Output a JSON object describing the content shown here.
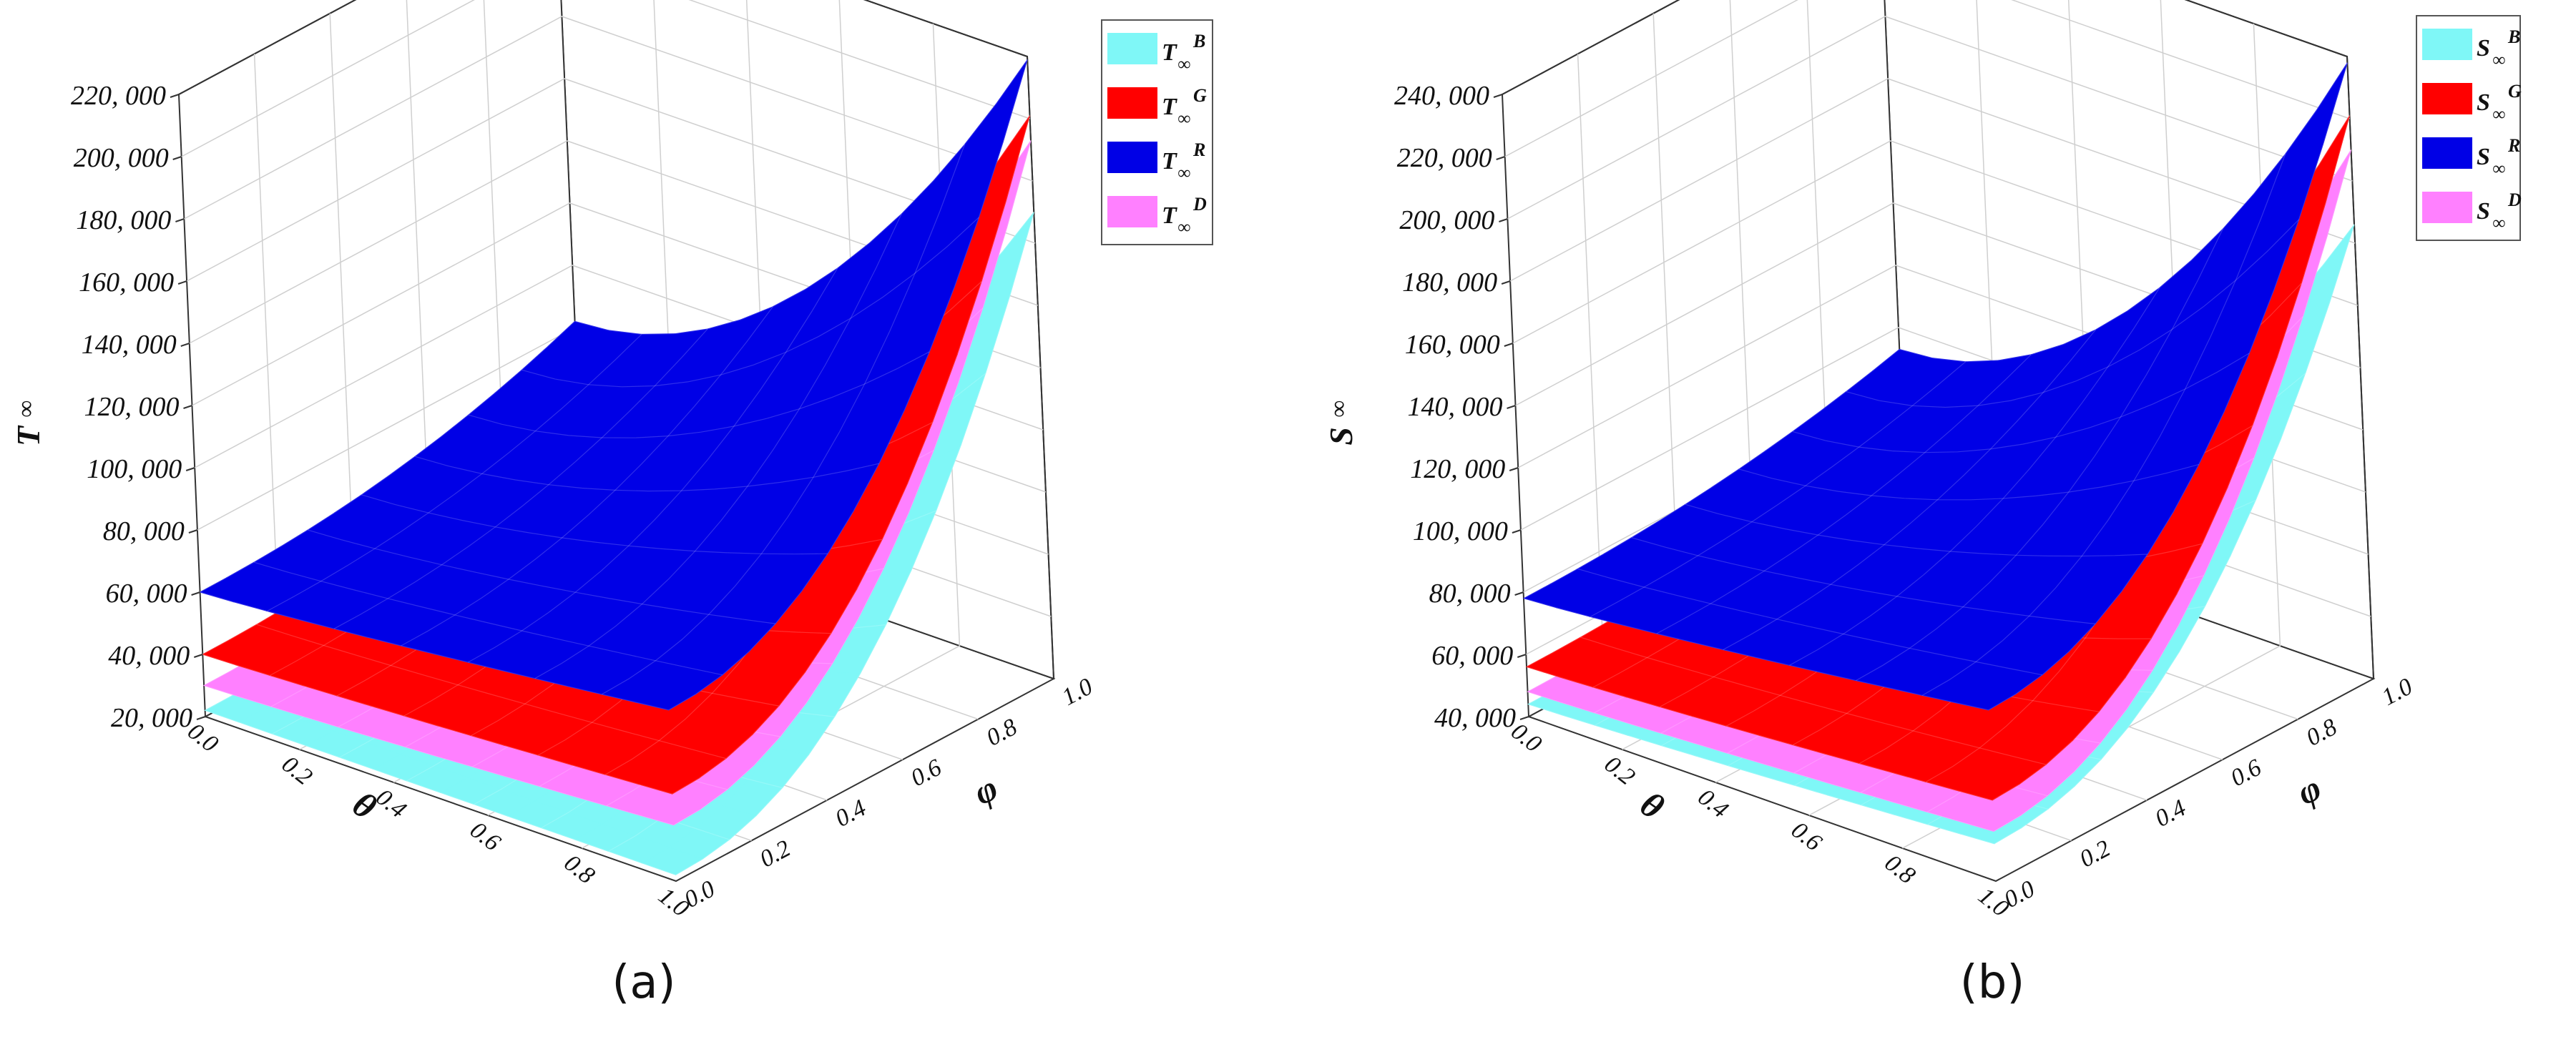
{
  "chart_data": [
    {
      "type": "surface3d",
      "panel_label": "(a)",
      "zlabel": "T",
      "zlabel_sub": "∞",
      "xlabel": "θ",
      "ylabel": "φ",
      "x_ticks": [
        "0.0",
        "0.2",
        "0.4",
        "0.6",
        "0.8",
        "1.0"
      ],
      "y_ticks": [
        "0.0",
        "0.2",
        "0.4",
        "0.6",
        "0.8",
        "1.0"
      ],
      "z_ticks": [
        "20, 000",
        "40, 000",
        "60, 000",
        "80, 000",
        "100, 000",
        "120, 000",
        "140, 000",
        "160, 000",
        "180, 000",
        "200, 000",
        "220, 000"
      ],
      "zlim": [
        20000,
        220000
      ],
      "legend_placement": "top-right",
      "series": [
        {
          "name": "T",
          "sub": "∞",
          "sup": "B",
          "color": "#7ff7f7",
          "corners": {
            "t0p0": 22000,
            "t1p0": 22000,
            "t0p1": 44000,
            "t1p1": 170000
          }
        },
        {
          "name": "T",
          "sub": "∞",
          "sup": "G",
          "color": "#ff0000",
          "corners": {
            "t0p0": 40000,
            "t1p0": 48000,
            "t0p1": 63000,
            "t1p1": 201000
          }
        },
        {
          "name": "T",
          "sub": "∞",
          "sup": "R",
          "color": "#0000e6",
          "corners": {
            "t0p0": 60000,
            "t1p0": 75000,
            "t0p1": 82000,
            "t1p1": 219000
          }
        },
        {
          "name": "T",
          "sub": "∞",
          "sup": "D",
          "color": "#ff80ff",
          "corners": {
            "t0p0": 30000,
            "t1p0": 38000,
            "t0p1": 52000,
            "t1p1": 193000
          }
        }
      ]
    },
    {
      "type": "surface3d",
      "panel_label": "(b)",
      "zlabel": "S",
      "zlabel_sub": "∞",
      "xlabel": "θ",
      "ylabel": "φ",
      "x_ticks": [
        "0.0",
        "0.2",
        "0.4",
        "0.6",
        "0.8",
        "1.0"
      ],
      "y_ticks": [
        "0.0",
        "0.2",
        "0.4",
        "0.6",
        "0.8",
        "1.0"
      ],
      "z_ticks": [
        "40, 000",
        "60, 000",
        "80, 000",
        "100, 000",
        "120, 000",
        "140, 000",
        "160, 000",
        "180, 000",
        "200, 000",
        "220, 000",
        "240, 000"
      ],
      "zlim": [
        40000,
        240000
      ],
      "legend_placement": "top-right",
      "series": [
        {
          "name": "S",
          "sub": "∞",
          "sup": "B",
          "color": "#7ff7f7",
          "corners": {
            "t0p0": 44000,
            "t1p0": 52000,
            "t0p1": 58000,
            "t1p1": 186000
          }
        },
        {
          "name": "S",
          "sub": "∞",
          "sup": "G",
          "color": "#ff0000",
          "corners": {
            "t0p0": 56000,
            "t1p0": 66000,
            "t0p1": 71000,
            "t1p1": 221000
          }
        },
        {
          "name": "S",
          "sub": "∞",
          "sup": "R",
          "color": "#0000e6",
          "corners": {
            "t0p0": 78000,
            "t1p0": 95000,
            "t0p1": 93000,
            "t1p1": 238000
          }
        },
        {
          "name": "S",
          "sub": "∞",
          "sup": "D",
          "color": "#ff80ff",
          "corners": {
            "t0p0": 48000,
            "t1p0": 56000,
            "t0p1": 62000,
            "t1p1": 210000
          }
        }
      ]
    }
  ]
}
